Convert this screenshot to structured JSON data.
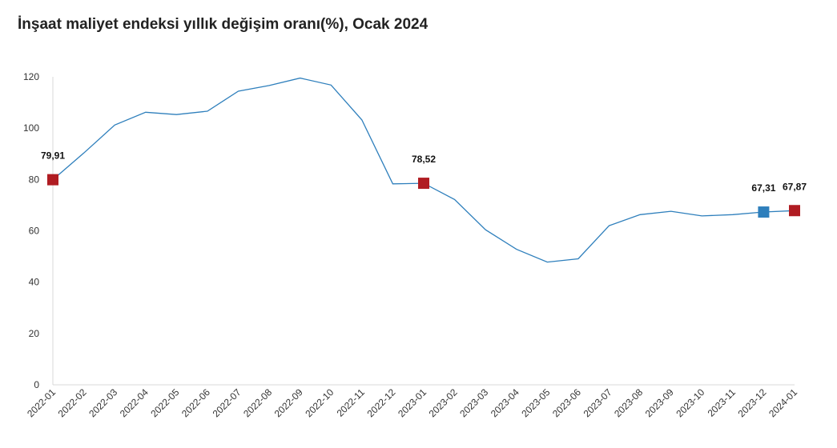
{
  "title": "İnşaat maliyet endeksi yıllık değişim oranı(%), Ocak 2024",
  "chart_data": {
    "type": "line",
    "title": "İnşaat maliyet endeksi yıllık değişim oranı(%), Ocak 2024",
    "xlabel": "",
    "ylabel": "",
    "ylim": [
      0,
      120
    ],
    "yticks": [
      0,
      20,
      40,
      60,
      80,
      100,
      120
    ],
    "grid": false,
    "legend": "none",
    "categories": [
      "2022-01",
      "2022-02",
      "2022-03",
      "2022-04",
      "2022-05",
      "2022-06",
      "2022-07",
      "2022-08",
      "2022-09",
      "2022-10",
      "2022-11",
      "2022-12",
      "2023-01",
      "2023-02",
      "2023-03",
      "2023-04",
      "2023-05",
      "2023-06",
      "2023-07",
      "2023-08",
      "2023-09",
      "2023-10",
      "2023-11",
      "2023-12",
      "2024-01"
    ],
    "series": [
      {
        "color": "#2e7fbc",
        "values": [
          79.91,
          90.3,
          101.2,
          106.2,
          105.3,
          106.6,
          114.4,
          116.6,
          119.5,
          116.8,
          103.2,
          78.3,
          78.52,
          72.2,
          60.4,
          52.8,
          47.8,
          49.1,
          62.0,
          66.3,
          67.6,
          65.8,
          66.3,
          67.31,
          67.87
        ]
      }
    ],
    "markers": [
      {
        "index": 0,
        "label": "79,91",
        "color": "#b01c22"
      },
      {
        "index": 12,
        "label": "78,52",
        "color": "#b01c22"
      },
      {
        "index": 23,
        "label": "67,31",
        "color": "#2e7fbc"
      },
      {
        "index": 24,
        "label": "67,87",
        "color": "#b01c22"
      }
    ]
  }
}
